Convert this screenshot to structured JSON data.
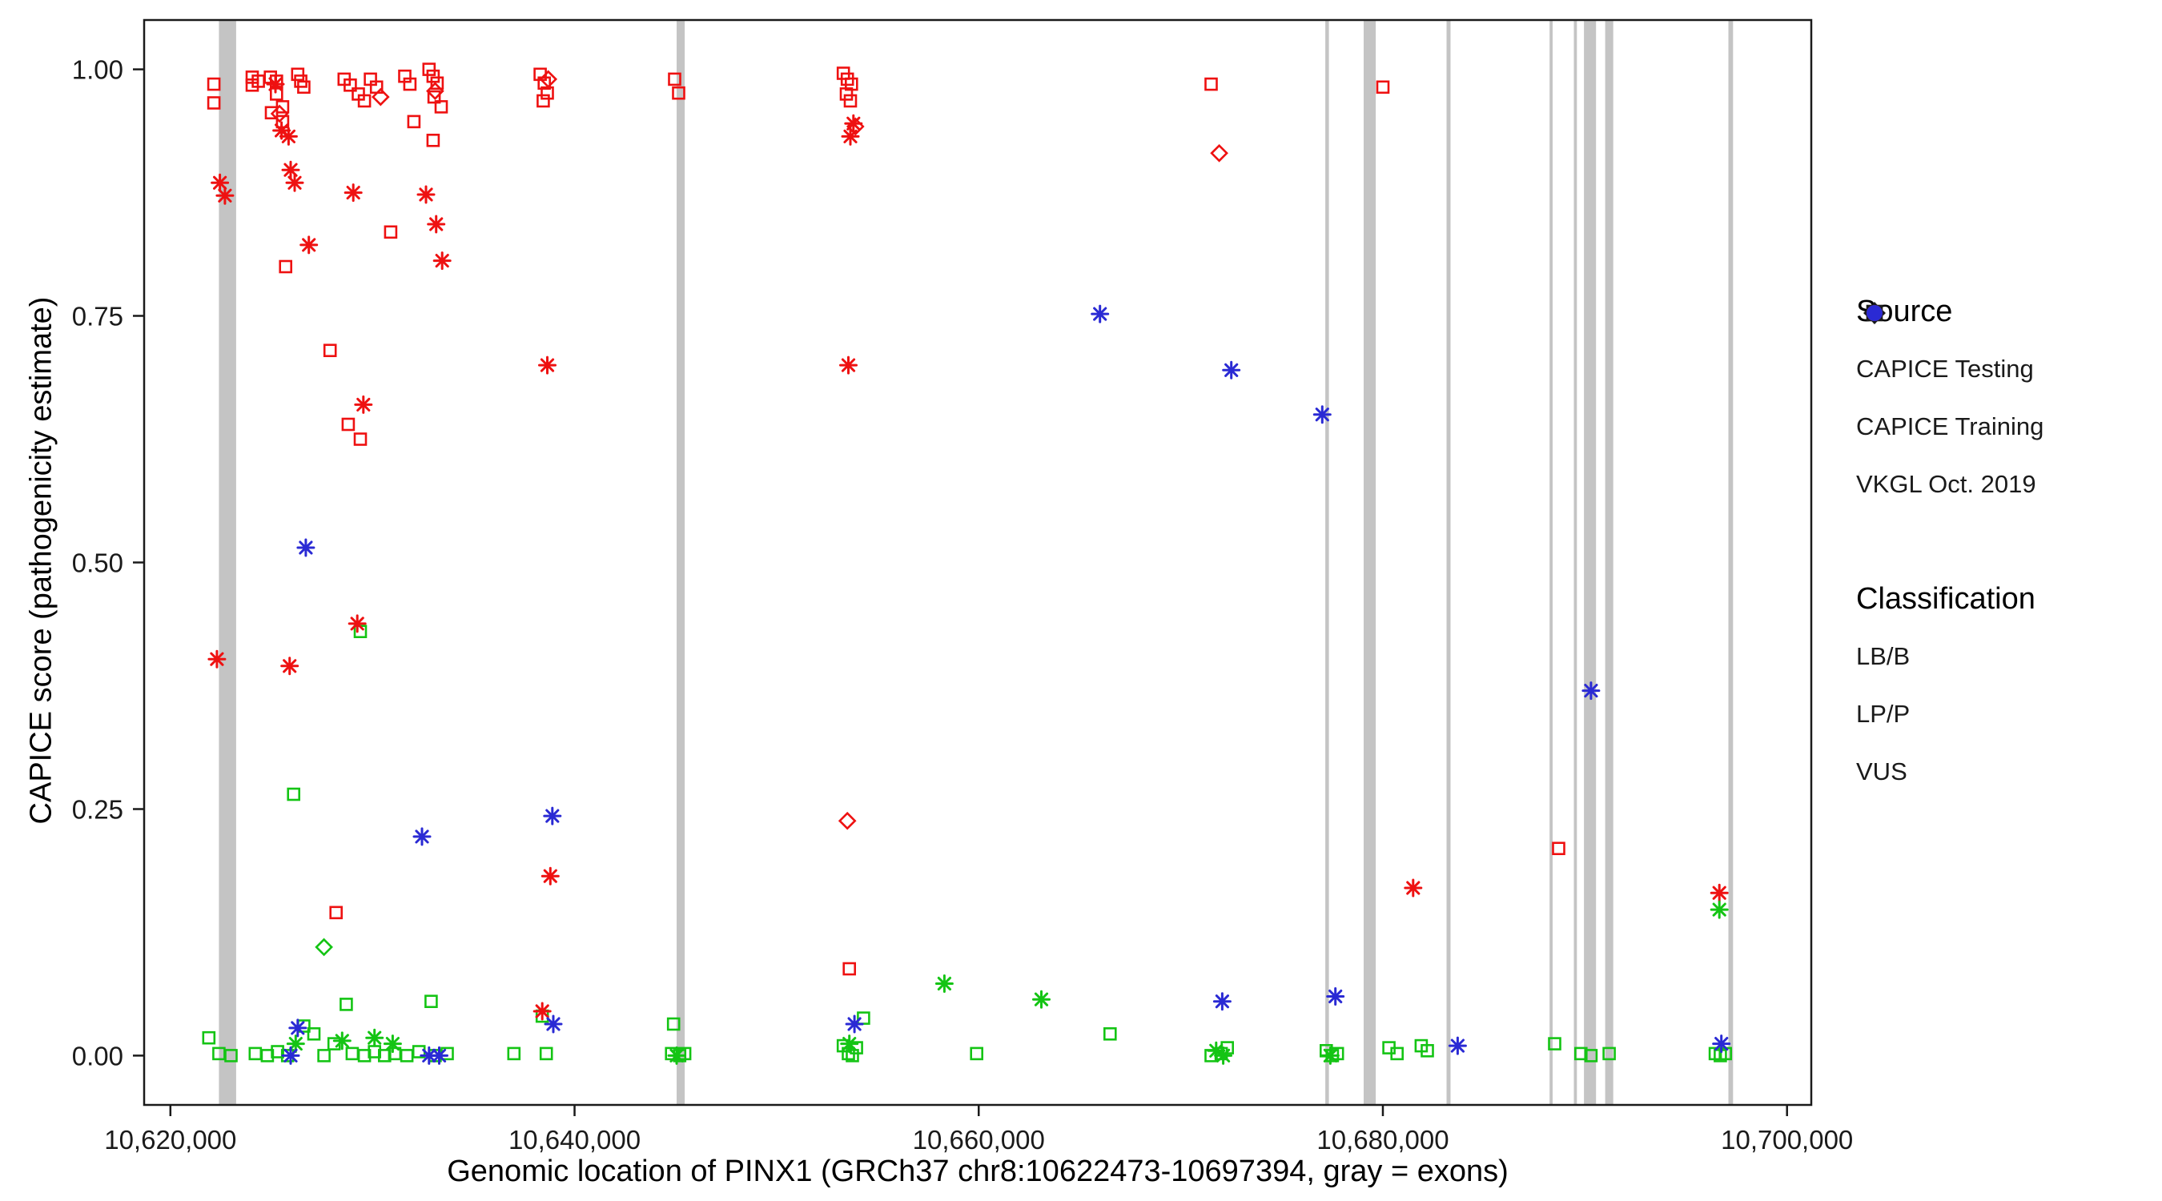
{
  "figure": {
    "background": "#ffffff"
  },
  "axes": {
    "x": {
      "label": "Genomic location of PINX1 (GRCh37 chr8:10622473-10697394, gray = exons)",
      "ticks": [
        {
          "value": 10620000,
          "label": "10,620,000"
        },
        {
          "value": 10640000,
          "label": "10,640,000"
        },
        {
          "value": 10660000,
          "label": "10,660,000"
        },
        {
          "value": 10680000,
          "label": "10,680,000"
        },
        {
          "value": 10700000,
          "label": "10,700,000"
        }
      ]
    },
    "y": {
      "label": "CAPICE score (pathogenicity estimate)",
      "ticks": [
        {
          "value": 0,
          "label": "0.00"
        },
        {
          "value": 0.25,
          "label": "0.25"
        },
        {
          "value": 0.5,
          "label": "0.50"
        },
        {
          "value": 0.75,
          "label": "0.75"
        },
        {
          "value": 1,
          "label": "1.00"
        }
      ]
    }
  },
  "legend": {
    "source": {
      "title": "Source",
      "items": [
        {
          "label": "CAPICE Testing",
          "marker": "diamond"
        },
        {
          "label": "CAPICE Training",
          "marker": "square"
        },
        {
          "label": "VKGL Oct. 2019",
          "marker": "asterisk"
        }
      ]
    },
    "classification": {
      "title": "Classification",
      "items": [
        {
          "label": "LB/B",
          "class": "LB"
        },
        {
          "label": "LP/P",
          "class": "LP"
        },
        {
          "label": "VUS",
          "class": "VUS"
        }
      ]
    }
  },
  "colors": {
    "LB": "#14c414",
    "LP": "#ee1111",
    "VUS": "#2a2ad4",
    "exon": "#c4c4c4",
    "axis": "#1a1a1a"
  },
  "chart_data": {
    "type": "scatter",
    "x_range": [
      10618700,
      10701200
    ],
    "y_range": [
      -0.05,
      1.05
    ],
    "grid": false,
    "legend_position": "right",
    "exons": [
      [
        10622400,
        10623250
      ],
      [
        10645050,
        10645450
      ],
      [
        10677150,
        10677330
      ],
      [
        10679050,
        10679650
      ],
      [
        10683150,
        10683350
      ],
      [
        10688250,
        10688400
      ],
      [
        10689450,
        10689600
      ],
      [
        10689950,
        10690550
      ],
      [
        10691000,
        10691400
      ],
      [
        10697100,
        10697330
      ]
    ],
    "series_legend": {
      "source_markers": {
        "te": "CAPICE Testing",
        "tr": "CAPICE Training",
        "vk": "VKGL Oct. 2019"
      },
      "classification_colors": {
        "LB": "LB/B",
        "LP": "LP/P",
        "VUS": "VUS"
      }
    },
    "points": [
      [
        10622150,
        0.985,
        "tr",
        "LP"
      ],
      [
        10622150,
        0.966,
        "tr",
        "LP"
      ],
      [
        10624050,
        0.992,
        "tr",
        "LP"
      ],
      [
        10624050,
        0.984,
        "tr",
        "LP"
      ],
      [
        10624350,
        0.988,
        "tr",
        "LP"
      ],
      [
        10624950,
        0.992,
        "tr",
        "LP"
      ],
      [
        10625250,
        0.988,
        "tr",
        "LP"
      ],
      [
        10625250,
        0.975,
        "tr",
        "LP"
      ],
      [
        10625000,
        0.956,
        "tr",
        "LP"
      ],
      [
        10625550,
        0.962,
        "tr",
        "LP"
      ],
      [
        10625550,
        0.947,
        "tr",
        "LP"
      ],
      [
        10625700,
        0.8,
        "tr",
        "LP"
      ],
      [
        10626300,
        0.995,
        "tr",
        "LP"
      ],
      [
        10626450,
        0.988,
        "tr",
        "LP"
      ],
      [
        10626600,
        0.982,
        "tr",
        "LP"
      ],
      [
        10627900,
        0.715,
        "tr",
        "LP"
      ],
      [
        10628200,
        0.145,
        "tr",
        "LP"
      ],
      [
        10628600,
        0.99,
        "tr",
        "LP"
      ],
      [
        10628900,
        0.984,
        "tr",
        "LP"
      ],
      [
        10628800,
        0.64,
        "tr",
        "LP"
      ],
      [
        10629300,
        0.975,
        "tr",
        "LP"
      ],
      [
        10629600,
        0.968,
        "tr",
        "LP"
      ],
      [
        10629400,
        0.625,
        "tr",
        "LP"
      ],
      [
        10629900,
        0.99,
        "tr",
        "LP"
      ],
      [
        10630200,
        0.982,
        "tr",
        "LP"
      ],
      [
        10630900,
        0.835,
        "tr",
        "LP"
      ],
      [
        10631600,
        0.993,
        "tr",
        "LP"
      ],
      [
        10631850,
        0.985,
        "tr",
        "LP"
      ],
      [
        10632050,
        0.947,
        "tr",
        "LP"
      ],
      [
        10632800,
        1.0,
        "tr",
        "LP"
      ],
      [
        10633000,
        0.993,
        "tr",
        "LP"
      ],
      [
        10633200,
        0.986,
        "tr",
        "LP"
      ],
      [
        10633050,
        0.972,
        "tr",
        "LP"
      ],
      [
        10633400,
        0.962,
        "tr",
        "LP"
      ],
      [
        10633000,
        0.928,
        "tr",
        "LP"
      ],
      [
        10638300,
        0.995,
        "tr",
        "LP"
      ],
      [
        10638500,
        0.986,
        "tr",
        "LP"
      ],
      [
        10638650,
        0.976,
        "tr",
        "LP"
      ],
      [
        10638450,
        0.968,
        "tr",
        "LP"
      ],
      [
        10644950,
        0.99,
        "tr",
        "LP"
      ],
      [
        10645150,
        0.976,
        "tr",
        "LP"
      ],
      [
        10653300,
        0.996,
        "tr",
        "LP"
      ],
      [
        10653500,
        0.99,
        "tr",
        "LP"
      ],
      [
        10653700,
        0.985,
        "tr",
        "LP"
      ],
      [
        10653450,
        0.975,
        "tr",
        "LP"
      ],
      [
        10653650,
        0.968,
        "tr",
        "LP"
      ],
      [
        10653600,
        0.088,
        "tr",
        "LP"
      ],
      [
        10671500,
        0.985,
        "tr",
        "LP"
      ],
      [
        10680000,
        0.982,
        "tr",
        "LP"
      ],
      [
        10688700,
        0.21,
        "tr",
        "LP"
      ],
      [
        10621900,
        0.018,
        "tr",
        "LB"
      ],
      [
        10622400,
        0.002,
        "tr",
        "LB"
      ],
      [
        10623000,
        0.0,
        "tr",
        "LB"
      ],
      [
        10624200,
        0.002,
        "tr",
        "LB"
      ],
      [
        10624800,
        0.0,
        "tr",
        "LB"
      ],
      [
        10625300,
        0.004,
        "tr",
        "LB"
      ],
      [
        10625800,
        0.0,
        "tr",
        "LB"
      ],
      [
        10626100,
        0.265,
        "tr",
        "LB"
      ],
      [
        10626600,
        0.03,
        "tr",
        "LB"
      ],
      [
        10627100,
        0.022,
        "tr",
        "LB"
      ],
      [
        10627600,
        0.0,
        "tr",
        "LB"
      ],
      [
        10628100,
        0.012,
        "tr",
        "LB"
      ],
      [
        10628700,
        0.052,
        "tr",
        "LB"
      ],
      [
        10629000,
        0.002,
        "tr",
        "LB"
      ],
      [
        10629400,
        0.43,
        "tr",
        "LB"
      ],
      [
        10629600,
        0.0,
        "tr",
        "LB"
      ],
      [
        10630100,
        0.004,
        "tr",
        "LB"
      ],
      [
        10630600,
        0.0,
        "tr",
        "LB"
      ],
      [
        10631100,
        0.002,
        "tr",
        "LB"
      ],
      [
        10631700,
        0.0,
        "tr",
        "LB"
      ],
      [
        10632300,
        0.004,
        "tr",
        "LB"
      ],
      [
        10632900,
        0.055,
        "tr",
        "LB"
      ],
      [
        10633100,
        0.0,
        "tr",
        "LB"
      ],
      [
        10633700,
        0.002,
        "tr",
        "LB"
      ],
      [
        10637000,
        0.002,
        "tr",
        "LB"
      ],
      [
        10638400,
        0.04,
        "tr",
        "LB"
      ],
      [
        10638600,
        0.002,
        "tr",
        "LB"
      ],
      [
        10644900,
        0.032,
        "tr",
        "LB"
      ],
      [
        10644800,
        0.002,
        "tr",
        "LB"
      ],
      [
        10645200,
        0.0,
        "tr",
        "LB"
      ],
      [
        10645450,
        0.002,
        "tr",
        "LB"
      ],
      [
        10653300,
        0.01,
        "tr",
        "LB"
      ],
      [
        10653550,
        0.002,
        "tr",
        "LB"
      ],
      [
        10653750,
        0.0,
        "tr",
        "LB"
      ],
      [
        10653950,
        0.008,
        "tr",
        "LB"
      ],
      [
        10654300,
        0.038,
        "tr",
        "LB"
      ],
      [
        10659900,
        0.002,
        "tr",
        "LB"
      ],
      [
        10666500,
        0.022,
        "tr",
        "LB"
      ],
      [
        10671500,
        0.0,
        "tr",
        "LB"
      ],
      [
        10672000,
        0.002,
        "tr",
        "LB"
      ],
      [
        10672300,
        0.008,
        "tr",
        "LB"
      ],
      [
        10677200,
        0.005,
        "tr",
        "LB"
      ],
      [
        10677500,
        0.0,
        "tr",
        "LB"
      ],
      [
        10677750,
        0.002,
        "tr",
        "LB"
      ],
      [
        10680300,
        0.008,
        "tr",
        "LB"
      ],
      [
        10680700,
        0.002,
        "tr",
        "LB"
      ],
      [
        10681900,
        0.01,
        "tr",
        "LB"
      ],
      [
        10682200,
        0.005,
        "tr",
        "LB"
      ],
      [
        10688500,
        0.012,
        "tr",
        "LB"
      ],
      [
        10689800,
        0.002,
        "tr",
        "LB"
      ],
      [
        10690300,
        0.0,
        "tr",
        "LB"
      ],
      [
        10691200,
        0.002,
        "tr",
        "LB"
      ],
      [
        10696450,
        0.002,
        "tr",
        "LB"
      ],
      [
        10696700,
        0.0,
        "tr",
        "LB"
      ],
      [
        10696950,
        0.002,
        "tr",
        "LB"
      ],
      [
        10625400,
        0.955,
        "te",
        "LP"
      ],
      [
        10630400,
        0.972,
        "te",
        "LP"
      ],
      [
        10633100,
        0.978,
        "te",
        "LP"
      ],
      [
        10638700,
        0.99,
        "te",
        "LP"
      ],
      [
        10653900,
        0.942,
        "te",
        "LP"
      ],
      [
        10653500,
        0.238,
        "te",
        "LP"
      ],
      [
        10671900,
        0.915,
        "te",
        "LP"
      ],
      [
        10627600,
        0.11,
        "te",
        "LB"
      ],
      [
        10622450,
        0.885,
        "vk",
        "LP"
      ],
      [
        10622700,
        0.872,
        "vk",
        "LP"
      ],
      [
        10622300,
        0.402,
        "vk",
        "LP"
      ],
      [
        10625200,
        0.985,
        "vk",
        "LP"
      ],
      [
        10625500,
        0.938,
        "vk",
        "LP"
      ],
      [
        10625850,
        0.932,
        "vk",
        "LP"
      ],
      [
        10625950,
        0.898,
        "vk",
        "LP"
      ],
      [
        10626150,
        0.885,
        "vk",
        "LP"
      ],
      [
        10625900,
        0.395,
        "vk",
        "LP"
      ],
      [
        10626850,
        0.822,
        "vk",
        "LP"
      ],
      [
        10629050,
        0.875,
        "vk",
        "LP"
      ],
      [
        10629550,
        0.66,
        "vk",
        "LP"
      ],
      [
        10629250,
        0.438,
        "vk",
        "LP"
      ],
      [
        10632650,
        0.873,
        "vk",
        "LP"
      ],
      [
        10633150,
        0.843,
        "vk",
        "LP"
      ],
      [
        10633450,
        0.806,
        "vk",
        "LP"
      ],
      [
        10638650,
        0.7,
        "vk",
        "LP"
      ],
      [
        10638800,
        0.182,
        "vk",
        "LP"
      ],
      [
        10638400,
        0.045,
        "vk",
        "LP"
      ],
      [
        10653550,
        0.7,
        "vk",
        "LP"
      ],
      [
        10653800,
        0.945,
        "vk",
        "LP"
      ],
      [
        10653650,
        0.932,
        "vk",
        "LP"
      ],
      [
        10681500,
        0.17,
        "vk",
        "LP"
      ],
      [
        10696650,
        0.165,
        "vk",
        "LP"
      ],
      [
        10626200,
        0.012,
        "vk",
        "LB"
      ],
      [
        10628500,
        0.015,
        "vk",
        "LB"
      ],
      [
        10630100,
        0.018,
        "vk",
        "LB"
      ],
      [
        10631000,
        0.012,
        "vk",
        "LB"
      ],
      [
        10645050,
        0.0,
        "vk",
        "LB"
      ],
      [
        10653600,
        0.012,
        "vk",
        "LB"
      ],
      [
        10658300,
        0.073,
        "vk",
        "LB"
      ],
      [
        10663100,
        0.057,
        "vk",
        "LB"
      ],
      [
        10671750,
        0.005,
        "vk",
        "LB"
      ],
      [
        10672100,
        0.0,
        "vk",
        "LB"
      ],
      [
        10677400,
        0.0,
        "vk",
        "LB"
      ],
      [
        10696650,
        0.148,
        "vk",
        "LB"
      ],
      [
        10626700,
        0.515,
        "vk",
        "VUS"
      ],
      [
        10632450,
        0.222,
        "vk",
        "VUS"
      ],
      [
        10638900,
        0.243,
        "vk",
        "VUS"
      ],
      [
        10666000,
        0.752,
        "vk",
        "VUS"
      ],
      [
        10672500,
        0.695,
        "vk",
        "VUS"
      ],
      [
        10677000,
        0.65,
        "vk",
        "VUS"
      ],
      [
        10690300,
        0.37,
        "vk",
        "VUS"
      ],
      [
        10625950,
        0.0,
        "vk",
        "VUS"
      ],
      [
        10626300,
        0.028,
        "vk",
        "VUS"
      ],
      [
        10632800,
        0.0,
        "vk",
        "VUS"
      ],
      [
        10633300,
        0.0,
        "vk",
        "VUS"
      ],
      [
        10638950,
        0.032,
        "vk",
        "VUS"
      ],
      [
        10653850,
        0.032,
        "vk",
        "VUS"
      ],
      [
        10672050,
        0.055,
        "vk",
        "VUS"
      ],
      [
        10677650,
        0.06,
        "vk",
        "VUS"
      ],
      [
        10683700,
        0.01,
        "vk",
        "VUS"
      ],
      [
        10696750,
        0.012,
        "vk",
        "VUS"
      ]
    ]
  }
}
